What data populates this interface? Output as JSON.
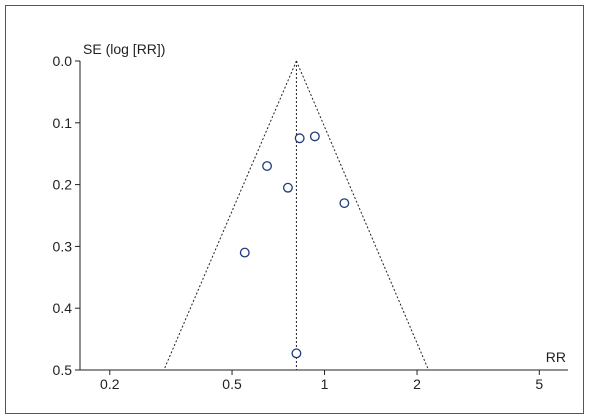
{
  "chart_data": {
    "type": "scatter",
    "subtype": "funnel-plot",
    "title": "",
    "xlabel": "RR",
    "ylabel": "SE (log [RR])",
    "x_scale": "log",
    "y_reversed": true,
    "xlim": [
      0.16,
      6.2
    ],
    "ylim": [
      0.0,
      0.5
    ],
    "x_ticks": [
      0.2,
      0.5,
      1,
      2,
      5
    ],
    "x_tick_labels": [
      "0.2",
      "0.5",
      "1",
      "2",
      "5"
    ],
    "y_ticks": [
      0.0,
      0.1,
      0.2,
      0.3,
      0.4,
      0.5
    ],
    "y_tick_labels": [
      "0.0",
      "0.1",
      "0.2",
      "0.3",
      "0.4",
      "0.5"
    ],
    "pooled_rr": 0.81,
    "funnel_limits_at_max_se": [
      0.3,
      2.18
    ],
    "grid": false,
    "legend": "none",
    "points": [
      {
        "x": 0.83,
        "y": 0.125
      },
      {
        "x": 0.93,
        "y": 0.122
      },
      {
        "x": 0.65,
        "y": 0.17
      },
      {
        "x": 0.76,
        "y": 0.205
      },
      {
        "x": 1.16,
        "y": 0.23
      },
      {
        "x": 0.55,
        "y": 0.31
      },
      {
        "x": 0.81,
        "y": 0.473
      }
    ],
    "colors": {
      "marker_stroke": "#1f3b7a",
      "axis": "#222222",
      "text": "#222222"
    }
  }
}
